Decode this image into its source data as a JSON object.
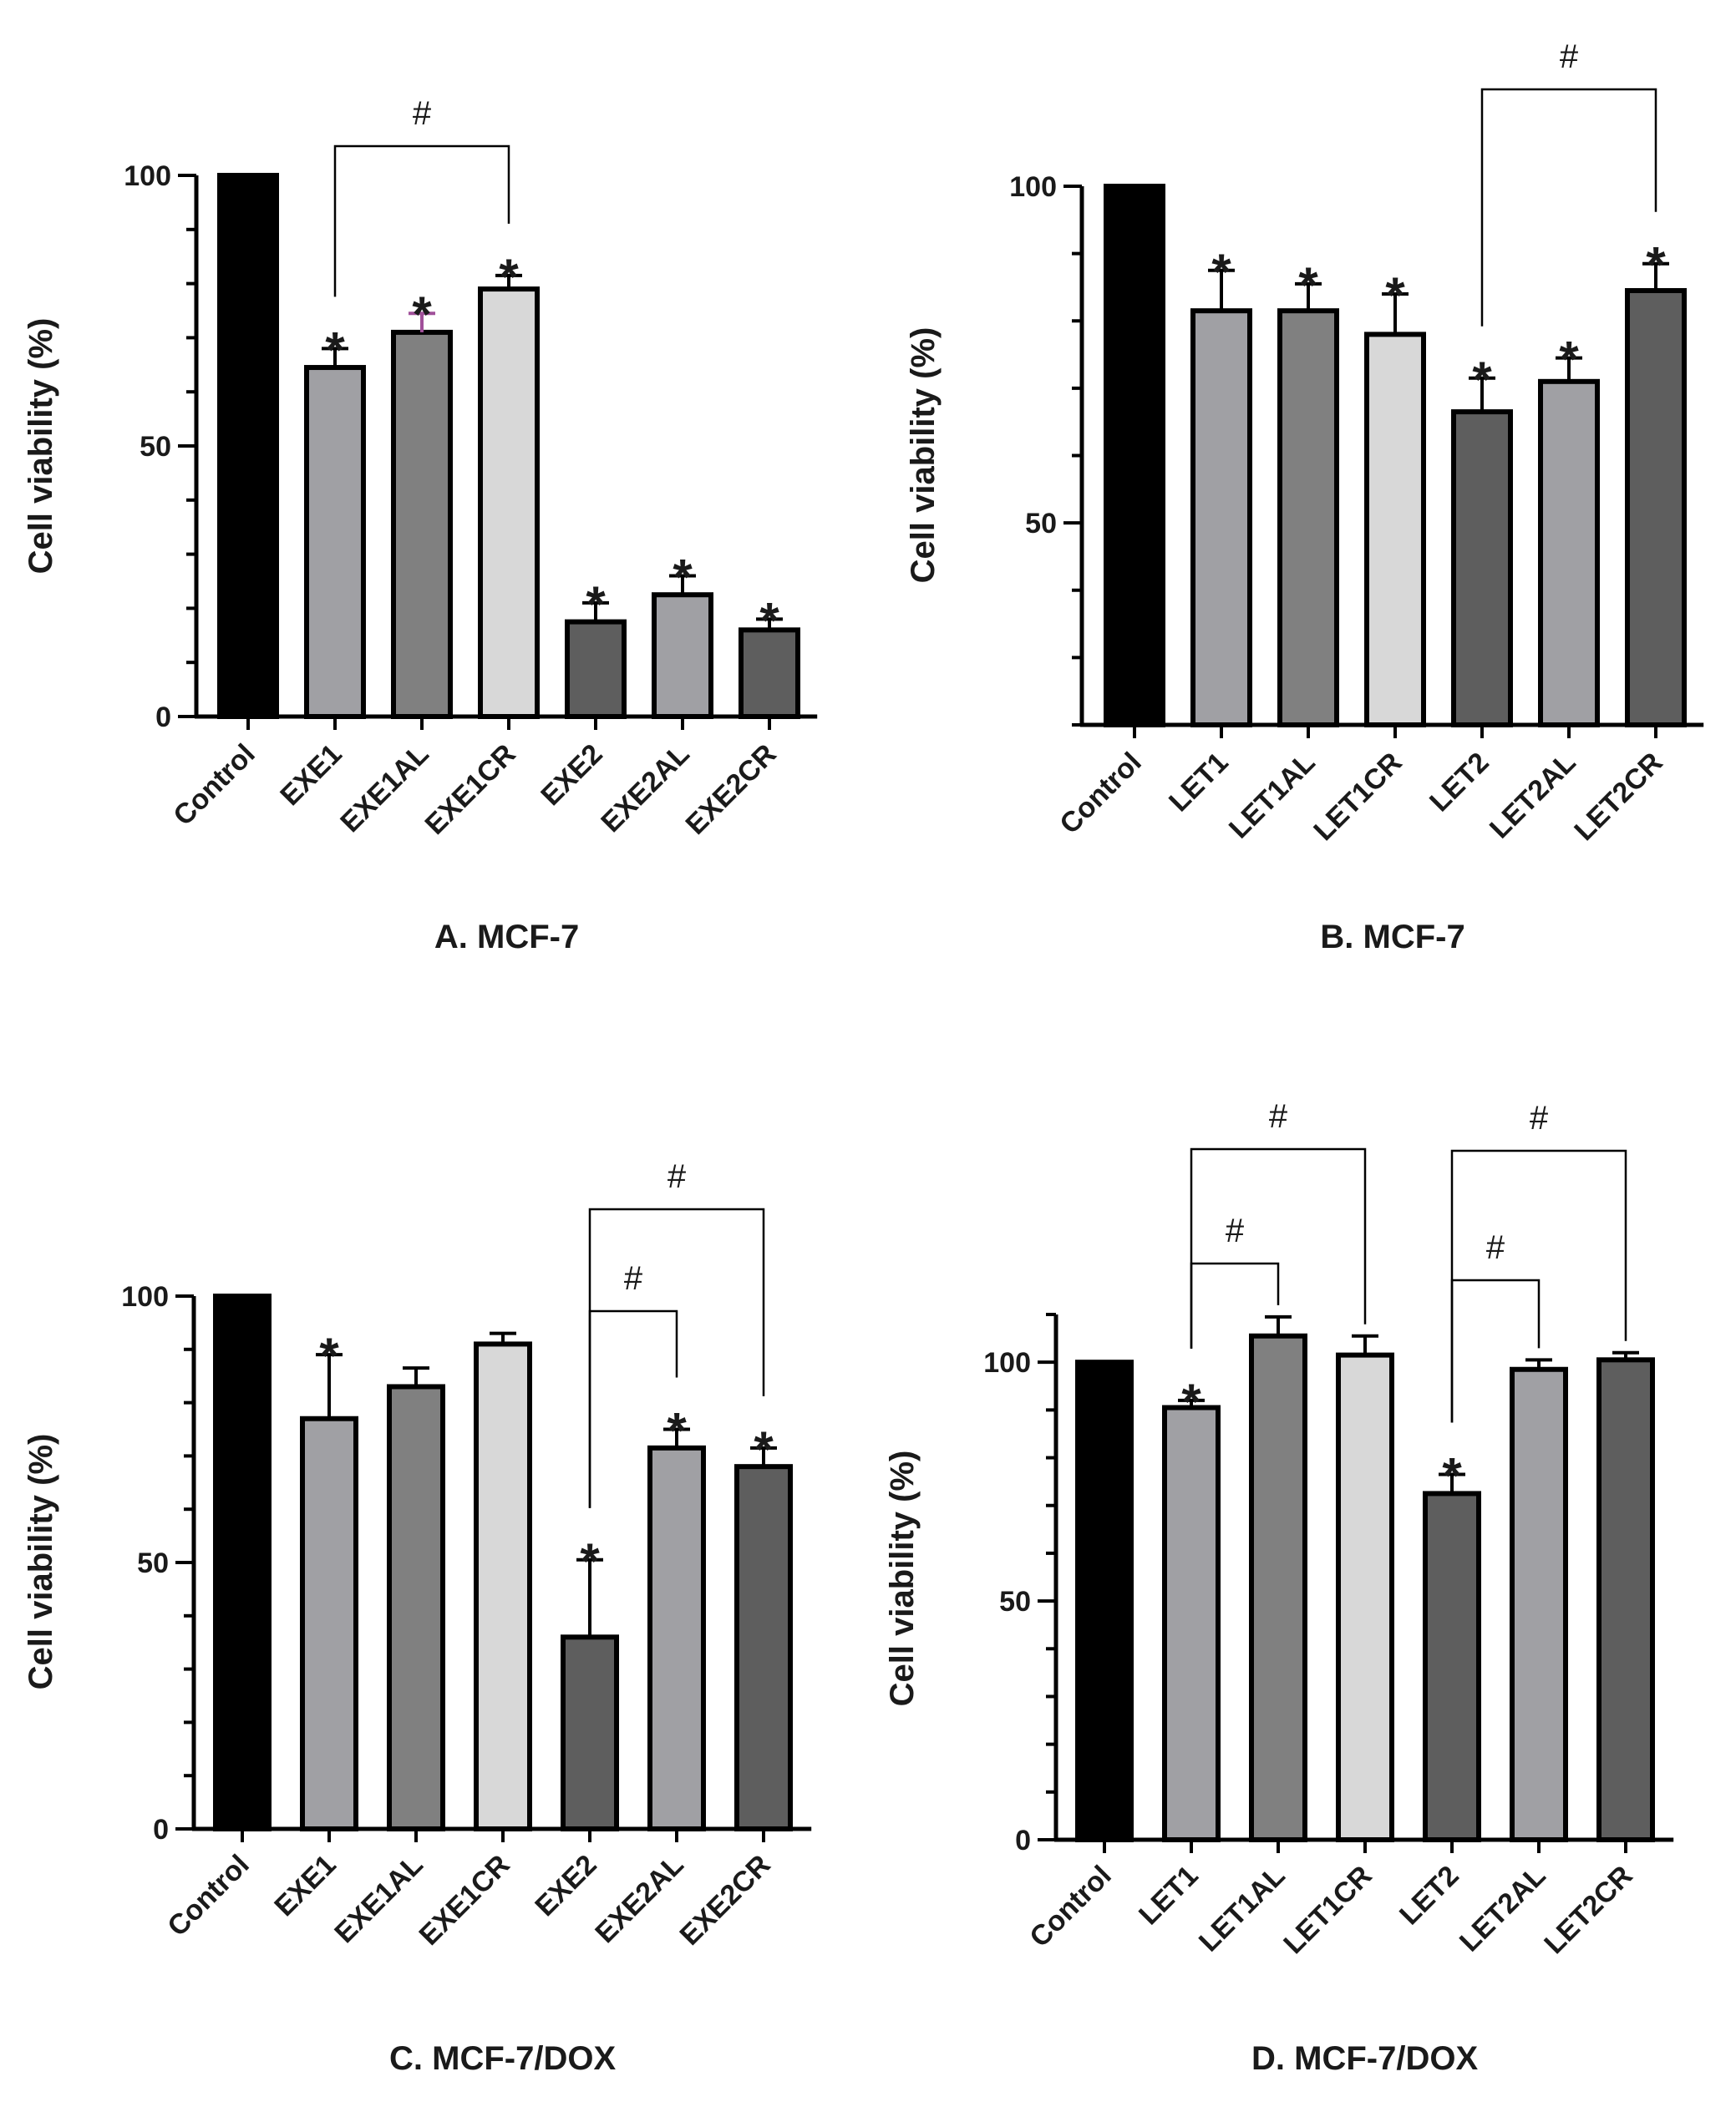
{
  "chart_data": [
    {
      "type": "bar",
      "title": "A. MCF-7",
      "ylabel": "Cell viability (%)",
      "ylim": [
        0,
        100
      ],
      "yticks": [
        "0",
        "50",
        "100"
      ],
      "categories": [
        "Control",
        "EXE1",
        "EXE1AL",
        "EXE1CR",
        "EXE2",
        "EXE2AL",
        "EXE2CR"
      ],
      "values": [
        100,
        64.5,
        71,
        79,
        17.5,
        22.5,
        16
      ],
      "errors": [
        0,
        3.5,
        3.5,
        2.5,
        3.5,
        3.5,
        2
      ],
      "colors": [
        "#000000",
        "#a0a0a4",
        "#808080",
        "#d8d8d8",
        "#5e5e5e",
        "#a0a0a4",
        "#5e5e5e"
      ],
      "error_colors": [
        "#000000",
        "#000000",
        "#a0509a",
        "#000000",
        "#000000",
        "#000000",
        "#000000"
      ],
      "significance": [
        "",
        "*",
        "*",
        "*",
        "*",
        "*",
        "*"
      ],
      "brackets": [
        {
          "from": 1,
          "to": 3,
          "label": "#"
        }
      ]
    },
    {
      "type": "bar",
      "title": "B. MCF-7",
      "ylabel": "Cell viability (%)",
      "ylim": [
        20,
        100
      ],
      "yticks": [
        "50",
        "100"
      ],
      "categories": [
        "Control",
        "LET1",
        "LET1AL",
        "LET1CR",
        "LET2",
        "LET2AL",
        "LET2CR"
      ],
      "values": [
        100,
        81.5,
        81.5,
        78,
        66.5,
        71,
        84.5
      ],
      "errors": [
        0,
        6,
        4,
        6,
        5,
        3.5,
        4
      ],
      "colors": [
        "#000000",
        "#a0a0a4",
        "#808080",
        "#d8d8d8",
        "#5e5e5e",
        "#a0a0a4",
        "#5e5e5e"
      ],
      "error_colors": [
        "#000000",
        "#000000",
        "#000000",
        "#000000",
        "#000000",
        "#000000",
        "#000000"
      ],
      "significance": [
        "",
        "*",
        "*",
        "*",
        "*",
        "*",
        "*"
      ],
      "brackets": [
        {
          "from": 4,
          "to": 6,
          "label": "#"
        }
      ]
    },
    {
      "type": "bar",
      "title": "C. MCF-7/DOX",
      "ylabel": "Cell viability (%)",
      "ylim": [
        0,
        100
      ],
      "yticks": [
        "0",
        "50",
        "100"
      ],
      "categories": [
        "Control",
        "EXE1",
        "EXE1AL",
        "EXE1CR",
        "EXE2",
        "EXE2AL",
        "EXE2CR"
      ],
      "values": [
        100,
        77,
        83,
        91,
        36,
        71.5,
        68
      ],
      "errors": [
        0,
        12,
        3.5,
        2,
        14.5,
        3.5,
        3.5
      ],
      "colors": [
        "#000000",
        "#a0a0a4",
        "#808080",
        "#d8d8d8",
        "#5e5e5e",
        "#a0a0a4",
        "#5e5e5e"
      ],
      "error_colors": [
        "#000000",
        "#000000",
        "#000000",
        "#000000",
        "#000000",
        "#000000",
        "#000000"
      ],
      "significance": [
        "",
        "*",
        "",
        "",
        "*",
        "*",
        "*"
      ],
      "brackets": [
        {
          "from": 4,
          "to": 5,
          "label": "#"
        },
        {
          "from": 4,
          "to": 6,
          "label": "#"
        }
      ]
    },
    {
      "type": "bar",
      "title": "D. MCF-7/DOX",
      "ylabel": "Cell viability (%)",
      "ylim": [
        0,
        110
      ],
      "yticks": [
        "0",
        "50",
        "100"
      ],
      "categories": [
        "Control",
        "LET1",
        "LET1AL",
        "LET1CR",
        "LET2",
        "LET2AL",
        "LET2CR"
      ],
      "values": [
        100,
        90.5,
        105.5,
        101.5,
        72.5,
        98.5,
        100.5
      ],
      "errors": [
        0,
        1.5,
        4,
        4,
        4,
        2,
        1.5
      ],
      "colors": [
        "#000000",
        "#a0a0a4",
        "#808080",
        "#d8d8d8",
        "#5e5e5e",
        "#a0a0a4",
        "#5e5e5e"
      ],
      "error_colors": [
        "#000000",
        "#000000",
        "#000000",
        "#000000",
        "#000000",
        "#000000",
        "#000000"
      ],
      "significance": [
        "",
        "*",
        "",
        "",
        "*",
        "",
        ""
      ],
      "brackets": [
        {
          "from": 1,
          "to": 2,
          "label": "#"
        },
        {
          "from": 1,
          "to": 3,
          "label": "#"
        },
        {
          "from": 4,
          "to": 5,
          "label": "#"
        },
        {
          "from": 4,
          "to": 6,
          "label": "#"
        }
      ]
    }
  ]
}
